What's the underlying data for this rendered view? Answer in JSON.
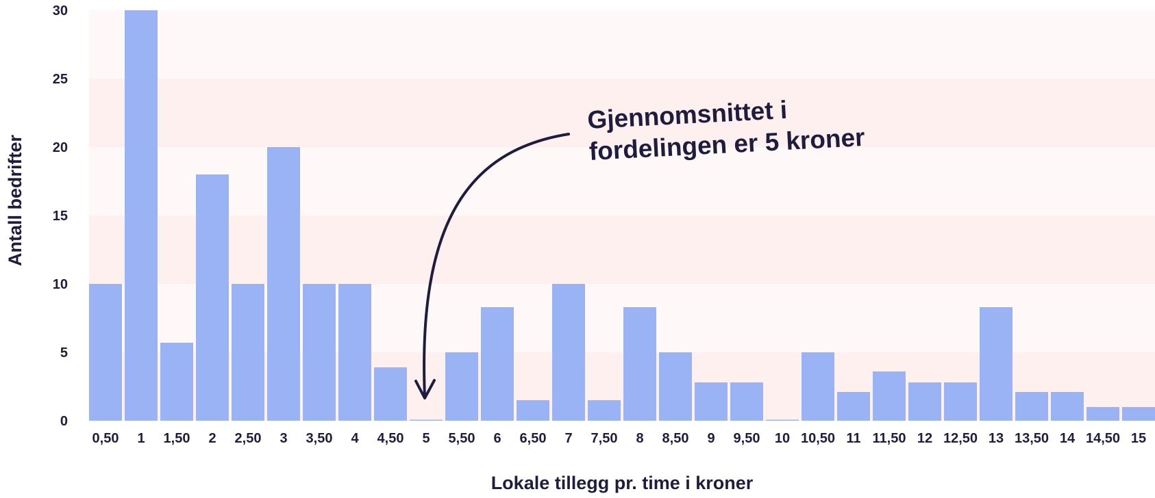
{
  "chart_data": {
    "type": "bar",
    "xlabel": "Lokale tillegg pr. time i kroner",
    "ylabel": "Antall bedrifter",
    "ylim": [
      0,
      30
    ],
    "yticks": [
      "0",
      "5",
      "10",
      "15",
      "20",
      "25",
      "30"
    ],
    "categories": [
      "0,50",
      "1",
      "1,50",
      "2",
      "2,50",
      "3",
      "3,50",
      "4",
      "4,50",
      "5",
      "5,50",
      "6",
      "6,50",
      "7",
      "7,50",
      "8",
      "8,50",
      "9",
      "9,50",
      "10",
      "10,50",
      "11",
      "11,50",
      "12",
      "12,50",
      "13",
      "13,50",
      "14",
      "14,50",
      "15"
    ],
    "values": [
      10,
      30,
      5.7,
      18,
      10,
      20,
      10,
      10,
      3.9,
      0,
      5,
      8.3,
      1.5,
      10,
      1.5,
      8.3,
      5,
      2.8,
      2.8,
      0,
      5,
      2.1,
      3.6,
      2.8,
      2.8,
      8.3,
      2.1,
      2.1,
      1,
      1
    ],
    "grid": "alternating horizontal bands",
    "annotation": {
      "lines": [
        "Gjennomsnittet i",
        "fordelingen er 5 kroner"
      ],
      "points_to": "5"
    },
    "colors": {
      "bar": "#99b3f5",
      "band_light": "#fff8f8",
      "band_dark": "#fff0f0",
      "text": "#1f1d3d"
    }
  }
}
